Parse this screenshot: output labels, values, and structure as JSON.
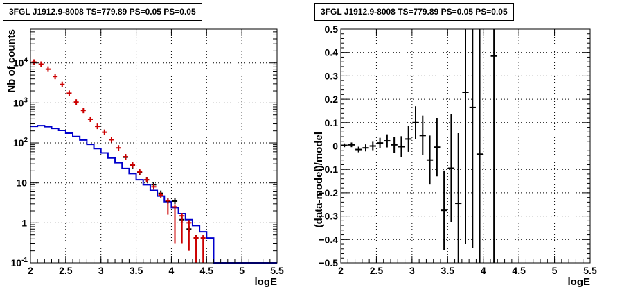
{
  "chart_data": [
    {
      "type": "histogram",
      "title": "3FGL J1912.9-8008 TS=779.89 PS=0.05 PS=0.05",
      "xlabel": "logE",
      "ylabel": "Nb of counts",
      "xlim": [
        2,
        5.5
      ],
      "ylim": [
        0.1,
        70000
      ],
      "log_y": true,
      "grid": true,
      "x_ticks": [
        "2",
        "2.5",
        "3",
        "3.5",
        "4",
        "4.5",
        "5",
        "5.5"
      ],
      "y_ticks": [
        {
          "value": 0.1,
          "label": "10^-1"
        },
        {
          "value": 1,
          "label": "1"
        },
        {
          "value": 10,
          "label": "10"
        },
        {
          "value": 100,
          "label": "10^2"
        },
        {
          "value": 1000,
          "label": "10^3"
        },
        {
          "value": 10000,
          "label": "10^4"
        }
      ],
      "series": [
        {
          "color": "#0000cc",
          "style": "step",
          "x_edges": [
            2.0,
            2.1,
            2.2,
            2.3,
            2.4,
            2.5,
            2.6,
            2.7,
            2.8,
            2.9,
            3.0,
            3.1,
            3.2,
            3.3,
            3.4,
            3.5,
            3.6,
            3.7,
            3.8,
            3.9,
            4.0,
            4.1,
            4.2,
            4.3,
            4.4,
            4.5,
            4.6,
            4.7,
            4.8,
            4.9,
            5.0,
            5.1,
            5.2,
            5.3,
            5.4,
            5.5
          ],
          "values": [
            260,
            270,
            255,
            230,
            205,
            175,
            145,
            118,
            92,
            72,
            56,
            42,
            32,
            23,
            17,
            12,
            9,
            6.5,
            4.7,
            3.4,
            2.4,
            1.7,
            1.2,
            0.85,
            0.6,
            0.42,
            0.1,
            0.1,
            0.1,
            0.1,
            0.1,
            0.1,
            0.1,
            0.1,
            0.1
          ]
        },
        {
          "color": "#cc0000",
          "style": "points",
          "x": [
            2.05,
            2.15,
            2.25,
            2.35,
            2.45,
            2.55,
            2.65,
            2.75,
            2.85,
            2.95,
            3.05,
            3.15,
            3.25,
            3.35,
            3.45,
            3.55,
            3.65,
            3.75,
            3.85,
            3.95,
            4.05,
            4.15,
            4.25,
            4.35,
            4.45
          ],
          "values": [
            10500,
            9300,
            7000,
            4600,
            2900,
            1750,
            1050,
            650,
            390,
            260,
            185,
            120,
            75,
            45,
            28,
            19,
            12,
            8,
            5,
            3.6,
            2.5,
            1.5,
            1.0,
            0.42,
            0.42
          ],
          "err_low": [
            0,
            0,
            0,
            0,
            0,
            0,
            0,
            0,
            0,
            0,
            0,
            0,
            0,
            0,
            0,
            0,
            0,
            0,
            0,
            2.0,
            2.2,
            1.2,
            0.8,
            0.32,
            0.32
          ],
          "err_high": [
            0,
            0,
            0,
            0,
            0,
            0,
            0,
            0,
            0,
            0,
            0,
            0,
            0,
            0,
            0,
            0,
            0,
            0,
            0,
            0,
            0,
            0,
            0,
            0,
            0
          ]
        },
        {
          "color": "#000000",
          "style": "points",
          "x": [
            3.35,
            3.45,
            3.55,
            3.65,
            3.75,
            3.85,
            3.95,
            4.05,
            4.15,
            4.25,
            4.35
          ],
          "values": [
            44,
            27,
            18,
            12,
            9,
            5.5,
            3.5,
            3.5,
            1.2,
            0.7,
            0.42
          ],
          "err_low": [
            0,
            0,
            0,
            0,
            0,
            0,
            0,
            0,
            0,
            0,
            0
          ],
          "err_high": [
            0,
            0,
            0,
            0,
            0,
            0,
            0,
            0,
            0,
            0,
            0
          ]
        }
      ]
    },
    {
      "type": "scatter",
      "title": "3FGL J1912.9-8008 TS=779.89 PS=0.05 PS=0.05",
      "xlabel": "logE",
      "ylabel": "(data-model)/model",
      "xlim": [
        2,
        5.5
      ],
      "ylim": [
        -0.5,
        0.5
      ],
      "grid": true,
      "x_ticks": [
        "2",
        "2.5",
        "3",
        "3.5",
        "4",
        "4.5",
        "5",
        "5.5"
      ],
      "y_ticks": [
        "-0.5",
        "-0.4",
        "-0.3",
        "-0.2",
        "-0.1",
        "0",
        "0.1",
        "0.2",
        "0.3",
        "0.4",
        "0.5"
      ],
      "series": [
        {
          "color": "#000000",
          "style": "points",
          "x": [
            2.05,
            2.15,
            2.25,
            2.35,
            2.45,
            2.55,
            2.65,
            2.75,
            2.85,
            2.95,
            3.05,
            3.15,
            3.25,
            3.35,
            3.45,
            3.55,
            3.65,
            3.75,
            3.85,
            3.95,
            4.15
          ],
          "y": [
            0.003,
            0.005,
            -0.015,
            -0.008,
            0.0,
            0.013,
            0.022,
            0.005,
            -0.003,
            0.03,
            0.1,
            0.045,
            -0.06,
            -0.005,
            -0.275,
            -0.095,
            -0.245,
            0.23,
            0.165,
            -0.035,
            0.385
          ],
          "err": [
            0.008,
            0.01,
            0.012,
            0.015,
            0.018,
            0.022,
            0.028,
            0.034,
            0.045,
            0.055,
            0.07,
            0.085,
            0.105,
            0.125,
            0.17,
            0.23,
            0.3,
            0.65,
            0.6,
            0.9,
            0.9
          ]
        }
      ]
    }
  ]
}
